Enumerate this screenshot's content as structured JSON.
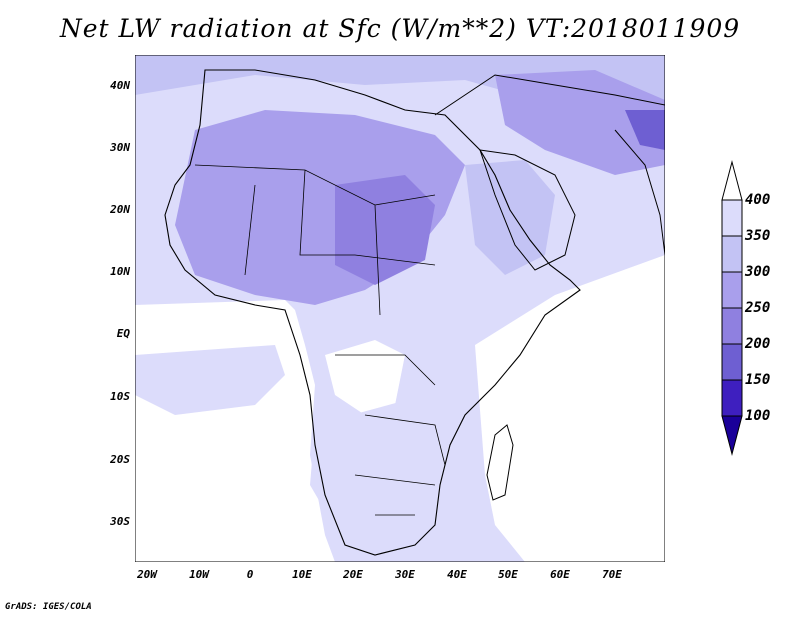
{
  "title": "Net LW radiation at Sfc (W/m**2) VT:2018011909",
  "footer": "GrADS: IGES/COLA",
  "y_axis": {
    "ticks": [
      "40N",
      "30N",
      "20N",
      "10N",
      "EQ",
      "10S",
      "20S",
      "30S"
    ]
  },
  "x_axis": {
    "ticks": [
      "20W",
      "10W",
      "0",
      "10E",
      "20E",
      "30E",
      "40E",
      "50E",
      "60E",
      "70E"
    ]
  },
  "colorbar": {
    "labels": [
      "400",
      "350",
      "300",
      "250",
      "200",
      "150",
      "100"
    ],
    "colors": [
      "#ffffff",
      "#dcdcfb",
      "#c3c3f4",
      "#a99fec",
      "#8f80e0",
      "#6e5fd2",
      "#3e1fbf",
      "#1a0099"
    ]
  },
  "chart_data": {
    "type": "heatmap",
    "title": "Net LW radiation at Sfc (W/m**2) VT:2018011909",
    "xlabel": "",
    "ylabel": "",
    "x_range": [
      -22,
      80
    ],
    "y_range": [
      -37,
      45
    ],
    "x_ticks": [
      "20W",
      "10W",
      "0",
      "10E",
      "20E",
      "30E",
      "40E",
      "50E",
      "60E",
      "70E"
    ],
    "y_ticks": [
      "40N",
      "30N",
      "20N",
      "10N",
      "EQ",
      "10S",
      "20S",
      "30S"
    ],
    "levels": [
      100,
      150,
      200,
      250,
      300,
      350,
      400
    ],
    "colorbar_position": "right"
  }
}
